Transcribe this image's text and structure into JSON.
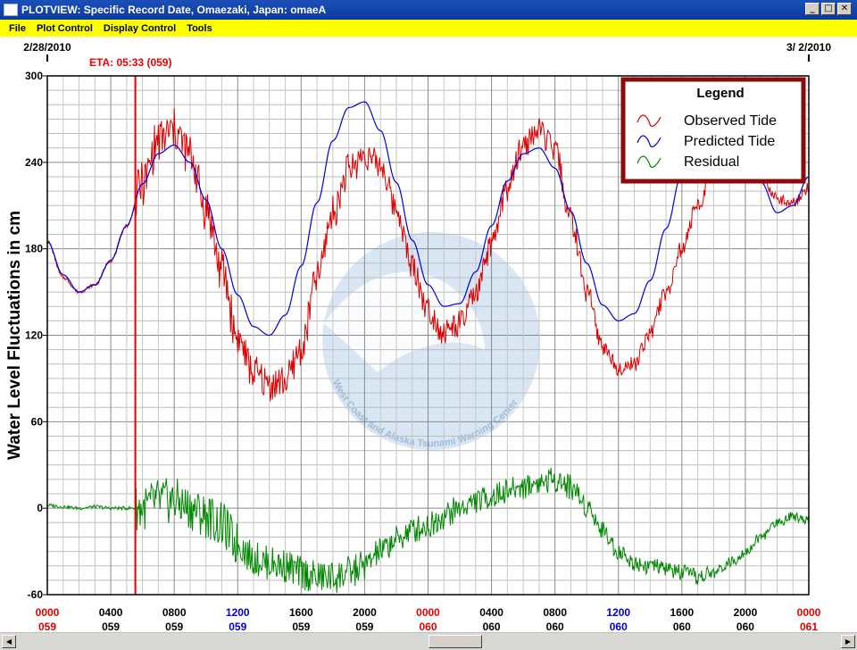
{
  "window": {
    "title": "PLOTVIEW: Specific Record Date, Omaezaki, Japan: omaeA",
    "controls": {
      "minimize": "_",
      "maximize": "□",
      "close": "✕"
    }
  },
  "menu": [
    "File",
    "Plot Control",
    "Display Control",
    "Tools"
  ],
  "colors": {
    "observed": "#dd0000",
    "predicted": "#0000dd",
    "residual": "#008800",
    "eta": "#ee0000",
    "menubar": "#ffff00",
    "legend_border": "#8b0a0a"
  },
  "icons": {
    "scroll_left": "arrow-left-icon",
    "scroll_right": "arrow-right-icon"
  },
  "chart_data": {
    "type": "line",
    "ylabel": "Water Level Fluctuations in cm",
    "ylim": [
      -60,
      300
    ],
    "yticks": [
      -60,
      0,
      60,
      120,
      180,
      240,
      300
    ],
    "xlim_hours": [
      0,
      48
    ],
    "grid": true,
    "date_labels": [
      {
        "text": "2/28/2010",
        "hour": 0
      },
      {
        "text": "3/ 2/2010",
        "hour": 48
      }
    ],
    "eta": {
      "label": "ETA: 05:33 (059)",
      "hour": 5.55
    },
    "x_ticks": [
      {
        "hour": 0,
        "time": "0000",
        "day": "059",
        "color": "red"
      },
      {
        "hour": 4,
        "time": "0400",
        "day": "059",
        "color": "black"
      },
      {
        "hour": 8,
        "time": "0800",
        "day": "059",
        "color": "black"
      },
      {
        "hour": 12,
        "time": "1200",
        "day": "059",
        "color": "blue"
      },
      {
        "hour": 16,
        "time": "1600",
        "day": "059",
        "color": "black"
      },
      {
        "hour": 20,
        "time": "2000",
        "day": "059",
        "color": "black"
      },
      {
        "hour": 24,
        "time": "0000",
        "day": "060",
        "color": "red"
      },
      {
        "hour": 28,
        "time": "0400",
        "day": "060",
        "color": "black"
      },
      {
        "hour": 32,
        "time": "0800",
        "day": "060",
        "color": "black"
      },
      {
        "hour": 36,
        "time": "1200",
        "day": "060",
        "color": "blue"
      },
      {
        "hour": 40,
        "time": "1600",
        "day": "060",
        "color": "black"
      },
      {
        "hour": 44,
        "time": "2000",
        "day": "060",
        "color": "black"
      },
      {
        "hour": 48,
        "time": "0000",
        "day": "061",
        "color": "red"
      }
    ],
    "legend": {
      "title": "Legend",
      "position": "top-right",
      "entries": [
        "Observed Tide",
        "Predicted Tide",
        "Residual"
      ]
    },
    "watermark_text": "West Coast and Alaska Tsunami Warning Center",
    "series": [
      {
        "name": "Predicted Tide",
        "x": [
          0,
          1,
          2,
          3,
          4,
          5,
          6,
          7,
          8,
          9,
          10,
          11,
          12,
          13,
          14,
          15,
          16,
          17,
          18,
          19,
          20,
          21,
          22,
          23,
          24,
          25,
          26,
          27,
          28,
          29,
          30,
          31,
          32,
          33,
          34,
          35,
          36,
          37,
          38,
          39,
          40,
          41,
          42,
          43,
          44,
          45,
          46,
          47,
          48
        ],
        "values": [
          185,
          162,
          150,
          155,
          172,
          196,
          225,
          246,
          252,
          240,
          214,
          180,
          148,
          126,
          120,
          134,
          168,
          212,
          255,
          278,
          282,
          262,
          226,
          186,
          155,
          140,
          142,
          164,
          196,
          227,
          246,
          250,
          236,
          206,
          170,
          141,
          130,
          135,
          158,
          194,
          232,
          262,
          278,
          274,
          254,
          226,
          205,
          210,
          230
        ]
      },
      {
        "name": "Observed Tide",
        "x": [
          0,
          1,
          2,
          3,
          4,
          5,
          6,
          7,
          8,
          9,
          10,
          11,
          12,
          13,
          14,
          15,
          16,
          17,
          18,
          19,
          20,
          21,
          22,
          23,
          24,
          25,
          26,
          27,
          28,
          29,
          30,
          31,
          32,
          33,
          34,
          35,
          36,
          37,
          38,
          39,
          40,
          41,
          42,
          43,
          44,
          45,
          46,
          47,
          48
        ],
        "values": [
          185,
          160,
          150,
          155,
          172,
          196,
          225,
          255,
          262,
          245,
          208,
          165,
          118,
          94,
          86,
          88,
          110,
          160,
          205,
          235,
          245,
          238,
          208,
          168,
          138,
          122,
          128,
          148,
          182,
          222,
          252,
          262,
          248,
          200,
          152,
          112,
          98,
          100,
          122,
          150,
          180,
          210,
          238,
          252,
          248,
          230,
          215,
          212,
          222
        ]
      },
      {
        "name": "Residual",
        "x": [
          0,
          1,
          2,
          3,
          4,
          5,
          6,
          7,
          8,
          9,
          10,
          11,
          12,
          13,
          14,
          15,
          16,
          17,
          18,
          19,
          20,
          21,
          22,
          23,
          24,
          25,
          26,
          27,
          28,
          29,
          30,
          31,
          32,
          33,
          34,
          35,
          36,
          37,
          38,
          39,
          40,
          41,
          42,
          43,
          44,
          45,
          46,
          47,
          48
        ],
        "values": [
          2,
          1,
          0,
          1,
          0,
          0,
          0,
          5,
          5,
          0,
          -5,
          -12,
          -25,
          -35,
          -38,
          -40,
          -45,
          -48,
          -48,
          -45,
          -40,
          -30,
          -22,
          -15,
          -12,
          -5,
          0,
          5,
          8,
          12,
          15,
          18,
          20,
          15,
          2,
          -15,
          -30,
          -38,
          -40,
          -42,
          -45,
          -48,
          -45,
          -38,
          -30,
          -20,
          -10,
          -5,
          -8
        ]
      }
    ]
  }
}
